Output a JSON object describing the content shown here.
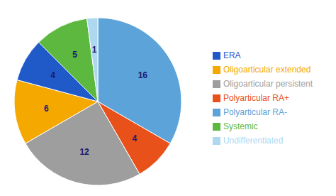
{
  "chart_data": {
    "type": "pie",
    "categories": [
      "Polyarticular RA-",
      "Polyarticular RA+",
      "Oligoarticular persistent",
      "Oligoarticular extended",
      "ERA",
      "Systemic",
      "Undifferentiated"
    ],
    "values": [
      16,
      4,
      12,
      6,
      4,
      5,
      1
    ],
    "colors": [
      "#5BA3D9",
      "#E8511A",
      "#9E9E9E",
      "#F5A800",
      "#1F5AC8",
      "#5DB840",
      "#ADD8F0"
    ],
    "data_labels": true,
    "legend": "right"
  }
}
